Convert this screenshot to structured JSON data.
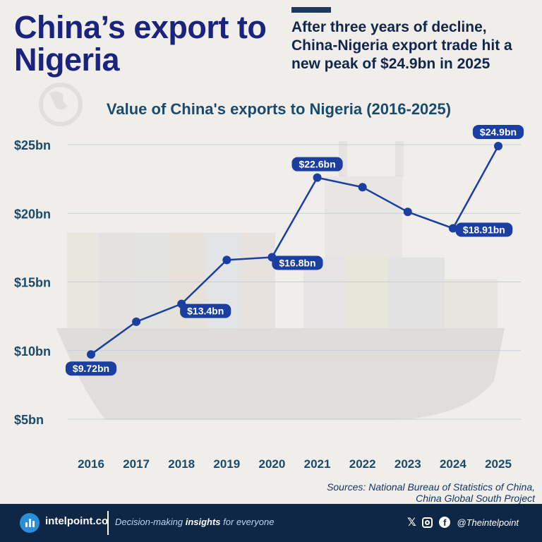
{
  "title": "China’s export to Nigeria",
  "subtitle": "After three years of decline, China-Nigeria export trade hit a new peak of $24.9bn in 2025",
  "footer": {
    "brand": "intelpoint.co",
    "tagline_pre": "Decision-making ",
    "tagline_bold": "insights",
    "tagline_post": " for everyone",
    "handle": "@Theintelpoint",
    "social_icons": [
      "x-icon",
      "instagram-icon",
      "facebook-icon"
    ]
  },
  "source": {
    "line1": "Sources: National Bureau of Statistics of China,",
    "line2": "China Global South Project"
  },
  "colors": {
    "line": "#1a3fa0",
    "label_bg": "#1a3fa0",
    "title": "#1a237e",
    "footer_bg": "#0f2747",
    "background": "#efeeeb"
  },
  "chart_data": {
    "type": "line",
    "title": "Value of China's exports to Nigeria (2016-2025)",
    "categories": [
      "2016",
      "2017",
      "2018",
      "2019",
      "2020",
      "2021",
      "2022",
      "2023",
      "2024",
      "2025"
    ],
    "series": [
      {
        "values": [
          9.72,
          12.1,
          13.4,
          16.6,
          16.8,
          22.6,
          21.9,
          20.1,
          18.91,
          24.9
        ]
      }
    ],
    "data_labels": [
      {
        "index": 0,
        "text": "$9.72bn"
      },
      {
        "index": 2,
        "text": "$13.4bn"
      },
      {
        "index": 4,
        "text": "$16.8bn"
      },
      {
        "index": 5,
        "text": "$22.6bn"
      },
      {
        "index": 8,
        "text": "$18.91bn"
      },
      {
        "index": 9,
        "text": "$24.9bn"
      }
    ],
    "y_ticks": [
      {
        "value": 5,
        "label": "$5bn"
      },
      {
        "value": 10,
        "label": "$10bn"
      },
      {
        "value": 15,
        "label": "$15bn"
      },
      {
        "value": 20,
        "label": "$20bn"
      },
      {
        "value": 25,
        "label": "$25bn"
      }
    ],
    "ylim": [
      5,
      25
    ],
    "grid": true,
    "legend": "none"
  }
}
